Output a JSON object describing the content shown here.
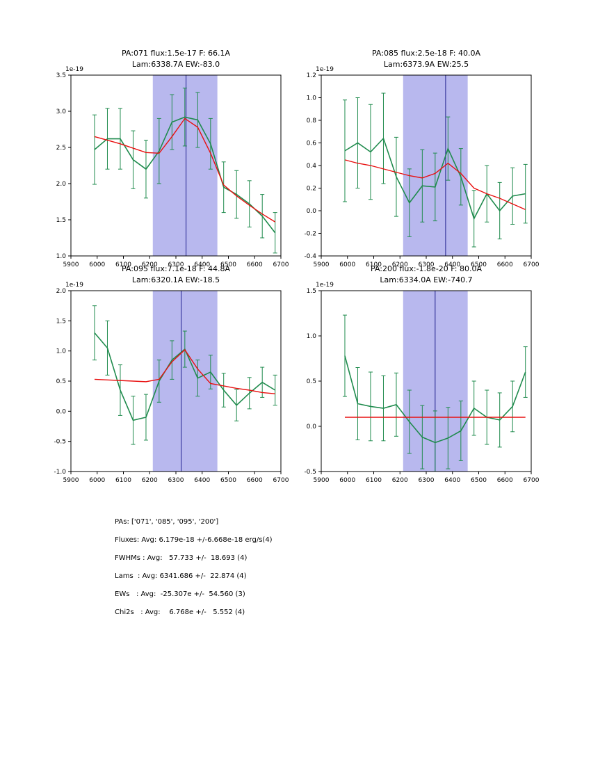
{
  "colors": {
    "data_line": "#1f8b4d",
    "fit_line": "#e81010",
    "band": "#b8b8ee",
    "vline": "#20208f",
    "frame": "#000000"
  },
  "chart_data": [
    {
      "type": "line",
      "title_line1": "PA:071 flux:1.5e-17 F: 66.1A",
      "title_line2": "Lam:6338.7A EW:-83.0",
      "offset_label": "1e-19",
      "xlim": [
        5900,
        6700
      ],
      "ylim": [
        1.0,
        3.5
      ],
      "xticks": [
        "5900",
        "6000",
        "6100",
        "6200",
        "6300",
        "6400",
        "6500",
        "6600",
        "6700"
      ],
      "yticks": [
        "1.0",
        "1.5",
        "2.0",
        "2.5",
        "3.0",
        "3.5"
      ],
      "band": [
        6212,
        6458
      ],
      "vline": 6338.7,
      "x": [
        5990,
        6039,
        6088,
        6137,
        6186,
        6236,
        6285,
        6334,
        6383,
        6432,
        6482,
        6531,
        6580,
        6629,
        6678
      ],
      "values": [
        2.47,
        2.62,
        2.62,
        2.33,
        2.2,
        2.45,
        2.85,
        2.92,
        2.88,
        2.55,
        1.95,
        1.85,
        1.72,
        1.55,
        1.32
      ],
      "errors": [
        0.48,
        0.42,
        0.42,
        0.4,
        0.4,
        0.45,
        0.38,
        0.4,
        0.38,
        0.35,
        0.35,
        0.33,
        0.32,
        0.3,
        0.28
      ],
      "fit": [
        2.65,
        2.6,
        2.55,
        2.49,
        2.43,
        2.42,
        2.65,
        2.9,
        2.78,
        2.42,
        1.98,
        1.83,
        1.7,
        1.58,
        1.47
      ]
    },
    {
      "type": "line",
      "title_line1": "PA:085 flux:2.5e-18 F: 40.0A",
      "title_line2": "Lam:6373.9A EW:25.5",
      "offset_label": "1e-19",
      "xlim": [
        5900,
        6700
      ],
      "ylim": [
        -0.4,
        1.2
      ],
      "xticks": [
        "5900",
        "6000",
        "6100",
        "6200",
        "6300",
        "6400",
        "6500",
        "6600",
        "6700"
      ],
      "yticks": [
        "-0.4",
        "-0.2",
        "0.0",
        "0.2",
        "0.4",
        "0.6",
        "0.8",
        "1.0",
        "1.2"
      ],
      "band": [
        6212,
        6458
      ],
      "vline": 6373.9,
      "x": [
        5990,
        6039,
        6088,
        6137,
        6186,
        6236,
        6285,
        6334,
        6383,
        6432,
        6482,
        6531,
        6580,
        6629,
        6678
      ],
      "values": [
        0.53,
        0.6,
        0.52,
        0.64,
        0.3,
        0.07,
        0.22,
        0.21,
        0.55,
        0.3,
        -0.07,
        0.15,
        0.0,
        0.13,
        0.15
      ],
      "errors": [
        0.45,
        0.4,
        0.42,
        0.4,
        0.35,
        0.3,
        0.32,
        0.3,
        0.28,
        0.25,
        0.25,
        0.25,
        0.25,
        0.25,
        0.26
      ],
      "fit": [
        0.45,
        0.42,
        0.4,
        0.37,
        0.34,
        0.31,
        0.29,
        0.33,
        0.42,
        0.33,
        0.2,
        0.15,
        0.11,
        0.06,
        0.01
      ]
    },
    {
      "type": "line",
      "title_line1": "PA:095 flux:7.1e-18 F: 44.8A",
      "title_line2": "Lam:6320.1A EW:-18.5",
      "offset_label": "1e-19",
      "xlim": [
        5900,
        6700
      ],
      "ylim": [
        -1.0,
        2.0
      ],
      "xticks": [
        "5900",
        "6000",
        "6100",
        "6200",
        "6300",
        "6400",
        "6500",
        "6600",
        "6700"
      ],
      "yticks": [
        "-1.0",
        "-0.5",
        "0.0",
        "0.5",
        "1.0",
        "1.5",
        "2.0"
      ],
      "band": [
        6212,
        6458
      ],
      "vline": 6320.1,
      "x": [
        5990,
        6039,
        6088,
        6137,
        6186,
        6236,
        6285,
        6334,
        6383,
        6432,
        6482,
        6531,
        6580,
        6629,
        6678
      ],
      "values": [
        1.3,
        1.05,
        0.35,
        -0.15,
        -0.1,
        0.5,
        0.85,
        1.03,
        0.55,
        0.65,
        0.35,
        0.1,
        0.3,
        0.48,
        0.35
      ],
      "errors": [
        0.45,
        0.45,
        0.42,
        0.4,
        0.38,
        0.35,
        0.32,
        0.3,
        0.3,
        0.28,
        0.28,
        0.26,
        0.26,
        0.25,
        0.25
      ],
      "fit": [
        0.53,
        0.52,
        0.51,
        0.5,
        0.49,
        0.53,
        0.82,
        1.02,
        0.7,
        0.46,
        0.42,
        0.38,
        0.35,
        0.31,
        0.29
      ]
    },
    {
      "type": "line",
      "title_line1": "PA:200 flux:-1.8e-20 F: 80.0A",
      "title_line2": "Lam:6334.0A EW:-740.7",
      "offset_label": "1e-19",
      "xlim": [
        5900,
        6700
      ],
      "ylim": [
        -0.5,
        1.5
      ],
      "xticks": [
        "5900",
        "6000",
        "6100",
        "6200",
        "6300",
        "6400",
        "6500",
        "6600",
        "6700"
      ],
      "yticks": [
        "-0.5",
        "0.0",
        "0.5",
        "1.0",
        "1.5"
      ],
      "band": [
        6212,
        6458
      ],
      "vline": 6334.0,
      "x": [
        5990,
        6039,
        6088,
        6137,
        6186,
        6236,
        6285,
        6334,
        6383,
        6432,
        6482,
        6531,
        6580,
        6629,
        6678
      ],
      "values": [
        0.78,
        0.25,
        0.22,
        0.2,
        0.24,
        0.05,
        -0.12,
        -0.18,
        -0.13,
        -0.05,
        0.2,
        0.1,
        0.07,
        0.22,
        0.6
      ],
      "errors": [
        0.45,
        0.4,
        0.38,
        0.36,
        0.35,
        0.35,
        0.35,
        0.35,
        0.34,
        0.33,
        0.3,
        0.3,
        0.3,
        0.28,
        0.28
      ],
      "fit": [
        0.1,
        0.1,
        0.1,
        0.1,
        0.1,
        0.1,
        0.1,
        0.1,
        0.1,
        0.1,
        0.1,
        0.1,
        0.1,
        0.1,
        0.1
      ]
    }
  ],
  "summary": {
    "lines": [
      "PAs: ['071', '085', '095', '200']",
      "Fluxes: Avg: 6.179e-18 +/-6.668e-18 erg/s(4)",
      "FWHMs : Avg:   57.733 +/-  18.693 (4)",
      "Lams  : Avg: 6341.686 +/-  22.874 (4)",
      "EWs   : Avg:  -25.307e +/-  54.560 (3)",
      "Chi2s   : Avg:    6.768e +/-   5.552 (4)"
    ]
  }
}
